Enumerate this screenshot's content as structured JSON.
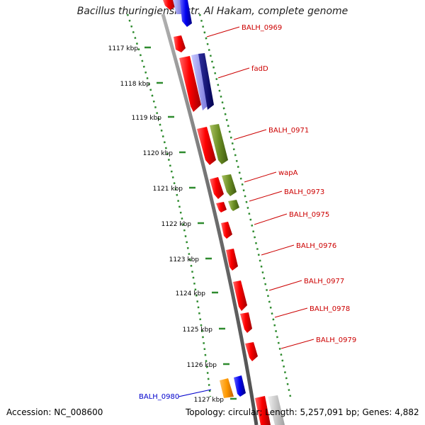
{
  "title": "Bacillus thuringiensis str. Al Hakam, complete genome",
  "footer": {
    "accession": "Accession: NC_008600",
    "summary": "Topology: circular; Length: 5,257,091 bp; Genes: 4,882"
  },
  "colors": {
    "backbone": "#808080",
    "ruler": "#2e8b2e",
    "label_red": "#cc0000",
    "label_blue": "#0000cc"
  },
  "ruler_ticks": [
    {
      "label": "1117 kbp"
    },
    {
      "label": "1118 kbp"
    },
    {
      "label": "1119 kbp"
    },
    {
      "label": "1120 kbp"
    },
    {
      "label": "1121 kbp"
    },
    {
      "label": "1122 kbp"
    },
    {
      "label": "1123 kbp"
    },
    {
      "label": "1124 kbp"
    },
    {
      "label": "1125 kbp"
    },
    {
      "label": "1126 kbp"
    },
    {
      "label": "1127 kbp"
    }
  ],
  "gene_labels": [
    {
      "text": "BALH_0969",
      "color": "red"
    },
    {
      "text": "fadD",
      "color": "red"
    },
    {
      "text": "BALH_0971",
      "color": "red"
    },
    {
      "text": "wapA",
      "color": "red"
    },
    {
      "text": "BALH_0973",
      "color": "red"
    },
    {
      "text": "BALH_0975",
      "color": "red"
    },
    {
      "text": "BALH_0976",
      "color": "red"
    },
    {
      "text": "BALH_0977",
      "color": "red"
    },
    {
      "text": "BALH_0978",
      "color": "red"
    },
    {
      "text": "BALH_0979",
      "color": "red"
    },
    {
      "text": "BALH_0980",
      "color": "blue"
    }
  ]
}
